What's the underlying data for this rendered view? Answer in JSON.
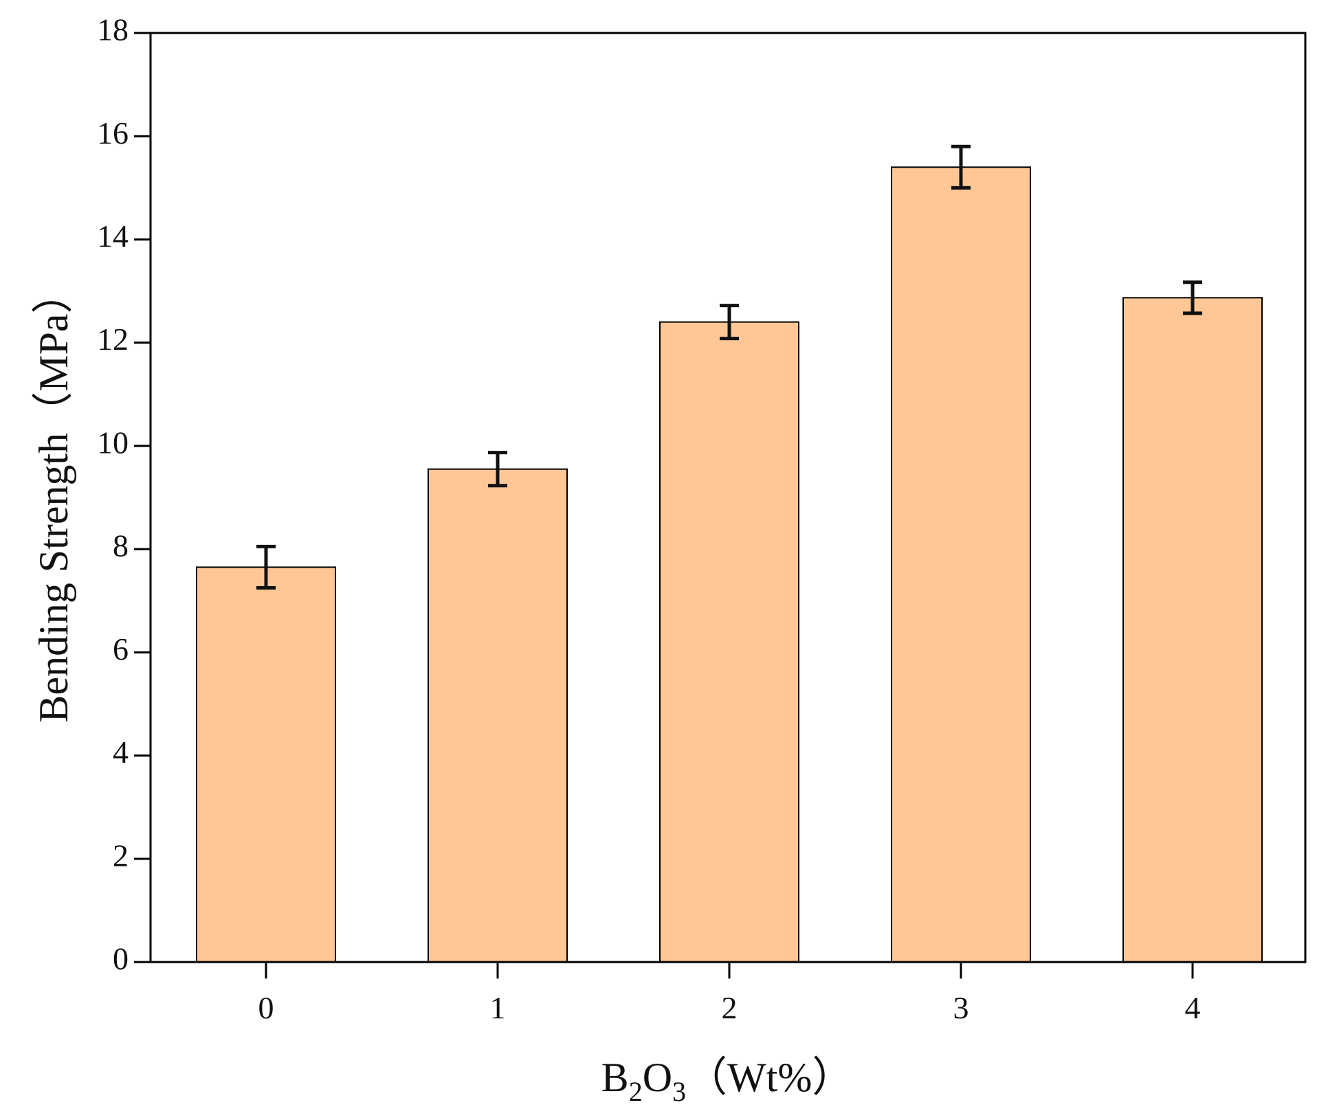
{
  "chart_data": {
    "type": "bar",
    "title": "",
    "categories": [
      "0",
      "1",
      "2",
      "3",
      "4"
    ],
    "series": [
      {
        "values": [
          7.65,
          9.55,
          12.4,
          15.4,
          12.87
        ],
        "errors": [
          0.4,
          0.32,
          0.32,
          0.4,
          0.3
        ]
      }
    ],
    "xlabel": {
      "main": "B",
      "sub1": "2",
      "mid": "O",
      "sub2": "3",
      "suffix": "（Wt%）"
    },
    "ylabel": "Bending Strength（MPa）",
    "ylim": [
      0,
      18
    ],
    "yticks": [
      "0",
      "2",
      "4",
      "6",
      "8",
      "10",
      "12",
      "14",
      "16",
      "18"
    ],
    "grid": false,
    "bar_color": "#ffc796",
    "edge_color": "#000000"
  }
}
